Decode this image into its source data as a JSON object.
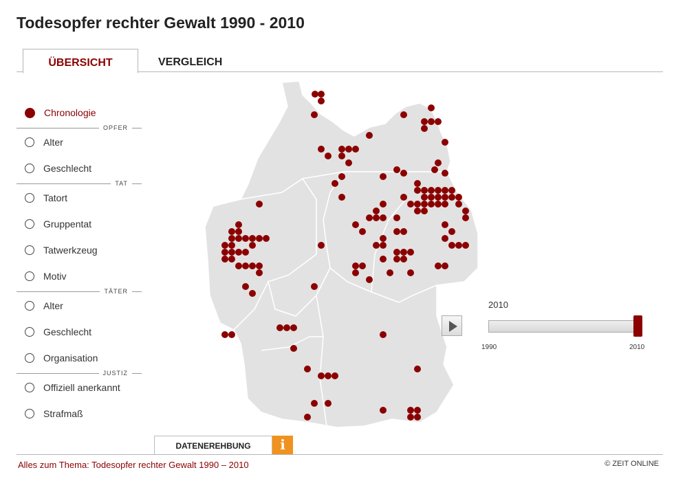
{
  "page": {
    "title": "Todesopfer rechter Gewalt 1990 - 2010"
  },
  "tabs": [
    {
      "label": "ÜBERSICHT",
      "active": true
    },
    {
      "label": "VERGLEICH",
      "active": false
    }
  ],
  "menu": {
    "chronologie": "Chronologie",
    "sections": {
      "opfer": "OPFER",
      "tat": "TAT",
      "taeter": "TÄTER",
      "justiz": "JUSTIZ"
    },
    "opfer_alter": "Alter",
    "opfer_geschlecht": "Geschlecht",
    "tatort": "Tatort",
    "gruppentat": "Gruppentat",
    "tatwerkzeug": "Tatwerkzeug",
    "motiv": "Motiv",
    "taeter_alter": "Alter",
    "taeter_geschlecht": "Geschlecht",
    "organisation": "Organisation",
    "offiziell": "Offiziell anerkannt",
    "strafmass": "Strafmaß",
    "selected": "Chronologie"
  },
  "timeline": {
    "current_year": "2010",
    "min_label": "1990",
    "max_label": "2010",
    "value": 2010,
    "range": [
      1990,
      2010
    ]
  },
  "colors": {
    "accent": "#8b0000",
    "marker": "#8b0000",
    "map_fill": "#e2e2e2",
    "map_border": "#ffffff",
    "info": "#f0921f"
  },
  "data_button": {
    "label": "DATENEREHBUNG",
    "info_icon": "i"
  },
  "footer": {
    "link": "Alles zum Thema: Todesopfer rechter Gewalt 1990 – 2010",
    "copyright": "© ZEIT ONLINE"
  }
}
